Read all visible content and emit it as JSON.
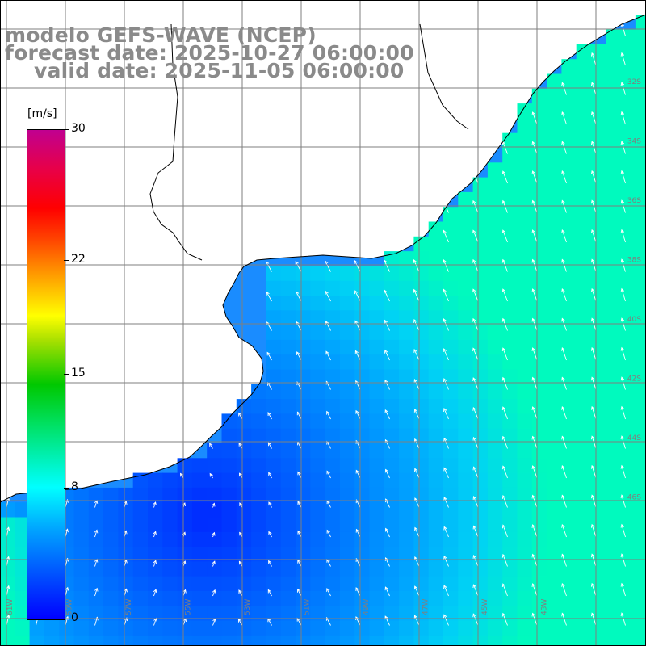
{
  "title": {
    "model": "modelo GEFS-WAVE (NCEP)",
    "forecast": "forecast date: 2025-10-27 06:00:00",
    "valid": "valid date: 2025-11-05 06:00:00"
  },
  "colorbar": {
    "unit": "[m/s]",
    "ticks": [
      {
        "label": "30",
        "value": 30
      },
      {
        "label": "22",
        "value": 22
      },
      {
        "label": "15",
        "value": 15
      },
      {
        "label": "8",
        "value": 8
      },
      {
        "label": "0",
        "value": 0
      }
    ],
    "min": 0,
    "max": 30
  },
  "grid": {
    "lon_labels": [
      "61W",
      "59W",
      "57W",
      "55W",
      "53W",
      "51W",
      "49W",
      "47W",
      "45W",
      "43W"
    ],
    "lat_labels": [
      "32S",
      "34S",
      "36S",
      "38S",
      "40S",
      "42S",
      "44S",
      "46S"
    ]
  },
  "colors": {
    "land": "#ffffff",
    "grid": "#7f7f7f",
    "coast": "#000000",
    "title": "#8a8a8a",
    "arrow": "#ffffff"
  }
}
